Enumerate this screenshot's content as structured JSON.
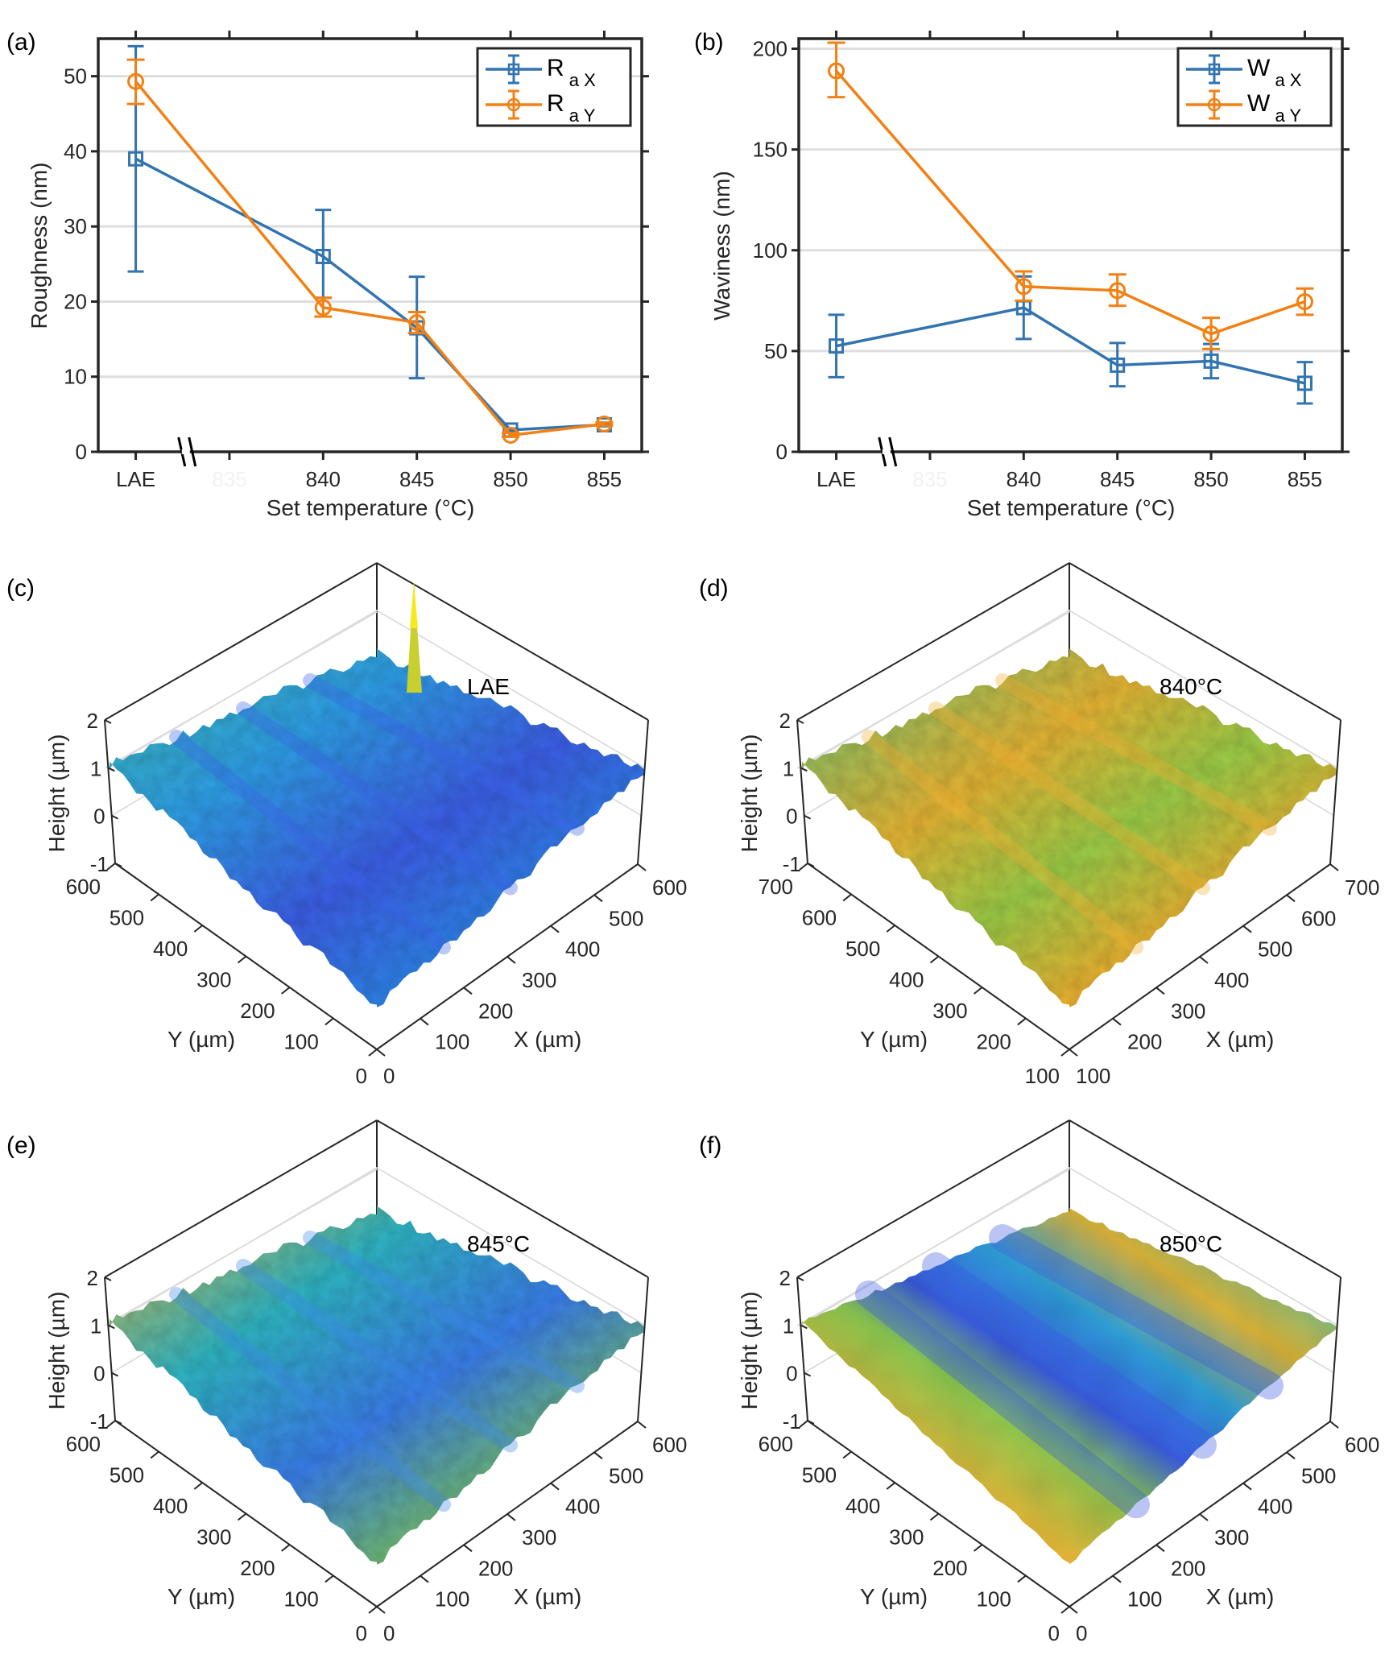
{
  "figure": {
    "panels": [
      "(a)",
      "(b)",
      "(c)",
      "(d)",
      "(e)",
      "(f)"
    ]
  },
  "colors": {
    "series_x": "#3274b0",
    "series_y": "#f28013",
    "grid": "#dedede",
    "axis": "#262626"
  },
  "chart_data": [
    {
      "panel": "(a)",
      "type": "line",
      "title": "",
      "xlabel": "Set temperature (°C)",
      "ylabel": "Roughness (nm)",
      "categories": [
        "LAE",
        "835",
        "840",
        "845",
        "850",
        "855"
      ],
      "hidden_categories": [
        "835"
      ],
      "axis_break_after": "LAE",
      "ylim": [
        0,
        55
      ],
      "yticks": [
        0,
        10,
        20,
        30,
        40,
        50
      ],
      "grid": "horizontal",
      "legend_position": "top-right",
      "series": [
        {
          "name": "Ra X",
          "main": "R",
          "sub": "a X",
          "marker": "square",
          "x": [
            "LAE",
            "840",
            "845",
            "850",
            "855"
          ],
          "values": [
            39.0,
            26.0,
            16.5,
            2.9,
            3.6
          ],
          "err_low": [
            24.0,
            20.5,
            9.8,
            2.7,
            3.4
          ],
          "err_high": [
            54.0,
            32.2,
            23.3,
            3.1,
            3.8
          ]
        },
        {
          "name": "Ra Y",
          "main": "R",
          "sub": "a Y",
          "marker": "circle",
          "x": [
            "LAE",
            "840",
            "845",
            "850",
            "855"
          ],
          "values": [
            49.3,
            19.2,
            17.2,
            2.2,
            3.7
          ],
          "err_low": [
            46.3,
            18.0,
            15.8,
            2.0,
            3.5
          ],
          "err_high": [
            52.2,
            20.5,
            18.6,
            2.5,
            3.9
          ]
        }
      ]
    },
    {
      "panel": "(b)",
      "type": "line",
      "title": "",
      "xlabel": "Set temperature (°C)",
      "ylabel": "Waviness (nm)",
      "categories": [
        "LAE",
        "835",
        "840",
        "845",
        "850",
        "855"
      ],
      "hidden_categories": [
        "835"
      ],
      "axis_break_after": "LAE",
      "ylim": [
        0,
        205
      ],
      "yticks": [
        0,
        50,
        100,
        150,
        200
      ],
      "grid": "horizontal",
      "legend_position": "top-right",
      "series": [
        {
          "name": "Wa X",
          "main": "W",
          "sub": "a X",
          "marker": "square",
          "x": [
            "LAE",
            "840",
            "845",
            "850",
            "855"
          ],
          "values": [
            52.5,
            71.5,
            43.0,
            45.0,
            34.0
          ],
          "err_low": [
            37.0,
            56.0,
            32.5,
            36.5,
            24.0
          ],
          "err_high": [
            68.0,
            87.0,
            54.0,
            53.5,
            44.5
          ]
        },
        {
          "name": "Wa Y",
          "main": "W",
          "sub": "a Y",
          "marker": "circle",
          "x": [
            "LAE",
            "840",
            "845",
            "850",
            "855"
          ],
          "values": [
            189.0,
            82.0,
            80.0,
            58.5,
            74.5
          ],
          "err_low": [
            176.0,
            75.0,
            72.5,
            51.0,
            68.0
          ],
          "err_high": [
            203.0,
            89.5,
            88.0,
            66.5,
            81.0
          ]
        }
      ]
    },
    {
      "panel": "(c)",
      "type": "surface",
      "annotation": "LAE",
      "zlabel": "Height (µm)",
      "xlabel": "X (µm)",
      "ylabel": "Y (µm)",
      "zticks": [
        "2",
        "1",
        "0",
        "-1"
      ],
      "xticks": [
        "0",
        "100",
        "200",
        "300",
        "400",
        "500",
        "600"
      ],
      "yticks": [
        "0",
        "100",
        "200",
        "300",
        "400",
        "500",
        "600"
      ],
      "surface_palette": [
        "#3d52e6",
        "#2f7cf0",
        "#1fa0e0",
        "#19b8c8",
        "#35c0a0",
        "#8cc852",
        "#e2c03a",
        "#f8f010"
      ],
      "dominant_colors": [
        "#3a62e8",
        "#2aa6d8",
        "#30c0b0"
      ],
      "features": "periodic ridges, one tall spike near back"
    },
    {
      "panel": "(d)",
      "type": "surface",
      "annotation": "840°C",
      "zlabel": "Height (µm)",
      "xlabel": "X (µm)",
      "ylabel": "Y (µm)",
      "zticks": [
        "2",
        "1",
        "0",
        "-1"
      ],
      "xticks": [
        "100",
        "200",
        "300",
        "400",
        "500",
        "600",
        "700"
      ],
      "yticks": [
        "100",
        "200",
        "300",
        "400",
        "500",
        "600",
        "700"
      ],
      "dominant_colors": [
        "#f0b030",
        "#9ccd48",
        "#2cb8b0"
      ],
      "features": "dense peaks, mostly yellow-green"
    },
    {
      "panel": "(e)",
      "type": "surface",
      "annotation": "845°C",
      "zlabel": "Height (µm)",
      "xlabel": "X (µm)",
      "ylabel": "Y (µm)",
      "zticks": [
        "2",
        "1",
        "0",
        "-1"
      ],
      "xticks": [
        "0",
        "100",
        "200",
        "300",
        "400",
        "500",
        "600"
      ],
      "yticks": [
        "0",
        "100",
        "200",
        "300",
        "400",
        "500",
        "600"
      ],
      "dominant_colors": [
        "#3a86ec",
        "#28b4c8",
        "#e8b838"
      ],
      "features": "fine texture, yellow bands on left and front edges"
    },
    {
      "panel": "(f)",
      "type": "surface",
      "annotation": "850°C",
      "zlabel": "Height (µm)",
      "xlabel": "X (µm)",
      "ylabel": "Y (µm)",
      "zticks": [
        "2",
        "1",
        "0",
        "-1"
      ],
      "xticks": [
        "0",
        "100",
        "200",
        "300",
        "400",
        "500",
        "600"
      ],
      "yticks": [
        "0",
        "100",
        "200",
        "300",
        "400",
        "500",
        "600"
      ],
      "dominant_colors": [
        "#3a58e4",
        "#28b8c0",
        "#e8c030"
      ],
      "features": "smooth, broad alternating yellow and blue bands"
    }
  ]
}
